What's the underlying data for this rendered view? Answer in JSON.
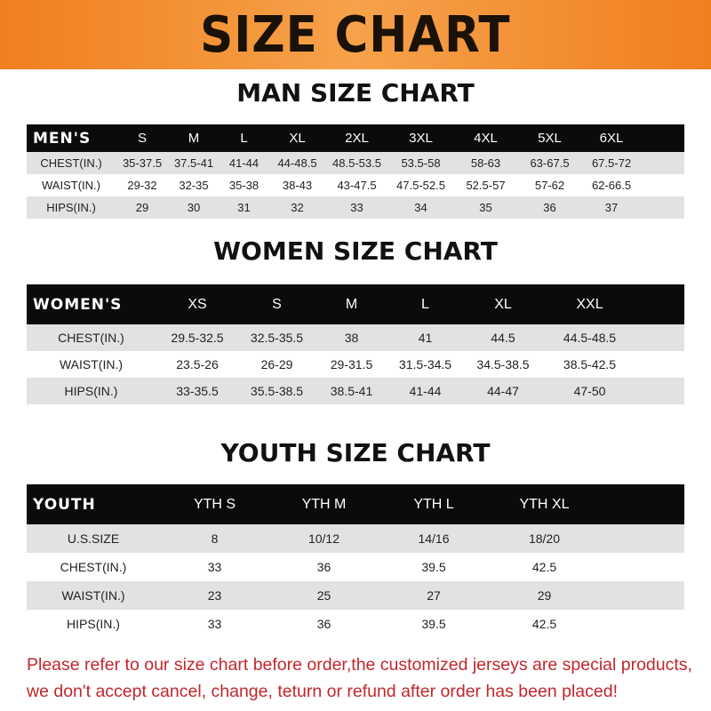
{
  "banner": {
    "title": "SIZE CHART",
    "color": "#f07f1f"
  },
  "men": {
    "title": "MAN SIZE CHART",
    "header": [
      "MEN'S",
      "S",
      "M",
      "L",
      "XL",
      "2XL",
      "3XL",
      "4XL",
      "5XL",
      "6XL"
    ],
    "rows": [
      [
        "CHEST(IN.)",
        "35-37.5",
        "37.5-41",
        "41-44",
        "44-48.5",
        "48.5-53.5",
        "53.5-58",
        "58-63",
        "63-67.5",
        "67.5-72"
      ],
      [
        "WAIST(IN.)",
        "29-32",
        "32-35",
        "35-38",
        "38-43",
        "43-47.5",
        "47.5-52.5",
        "52.5-57",
        "57-62",
        "62-66.5"
      ],
      [
        "HIPS(IN.)",
        "29",
        "30",
        "31",
        "32",
        "33",
        "34",
        "35",
        "36",
        "37"
      ]
    ]
  },
  "women": {
    "title": "WOMEN SIZE CHART",
    "header": [
      "WOMEN'S",
      "XS",
      "S",
      "M",
      "L",
      "XL",
      "XXL"
    ],
    "rows": [
      [
        "CHEST(IN.)",
        "29.5-32.5",
        "32.5-35.5",
        "38",
        "41",
        "44.5",
        "44.5-48.5"
      ],
      [
        "WAIST(IN.)",
        "23.5-26",
        "26-29",
        "29-31.5",
        "31.5-34.5",
        "34.5-38.5",
        "38.5-42.5"
      ],
      [
        "HIPS(IN.)",
        "33-35.5",
        "35.5-38.5",
        "38.5-41",
        "41-44",
        "44-47",
        "47-50"
      ]
    ]
  },
  "youth": {
    "title": "YOUTH SIZE CHART",
    "header": [
      "YOUTH",
      "YTH S",
      "YTH M",
      "YTH L",
      "YTH XL"
    ],
    "rows": [
      [
        "U.S.SIZE",
        "8",
        "10/12",
        "14/16",
        "18/20"
      ],
      [
        "CHEST(IN.)",
        "33",
        "36",
        "39.5",
        "42.5"
      ],
      [
        "WAIST(IN.)",
        "23",
        "25",
        "27",
        "29"
      ],
      [
        "HIPS(IN.)",
        "33",
        "36",
        "39.5",
        "42.5"
      ]
    ]
  },
  "note": {
    "line1": "Please refer to our size chart before order,the customized jerseys are special products,",
    "line2": "we don't accept cancel, change, teturn or refund after order has been placed!",
    "color": "#c0272d"
  }
}
